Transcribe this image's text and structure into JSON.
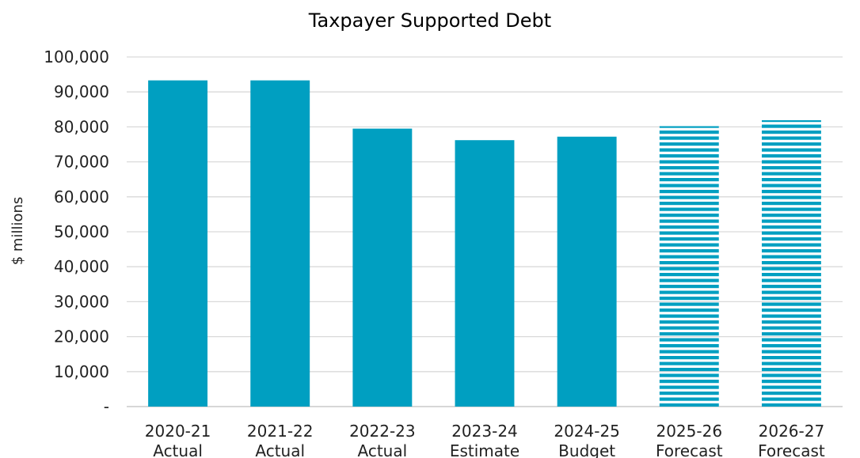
{
  "chart_data": {
    "type": "bar",
    "title": "Taxpayer Supported Debt",
    "ylabel": "$ millions",
    "xlabel": "",
    "ylim": [
      0,
      100000
    ],
    "yticks": [
      "-",
      "10,000",
      "20,000",
      "30,000",
      "40,000",
      "50,000",
      "60,000",
      "70,000",
      "80,000",
      "90,000",
      "100,000"
    ],
    "ytick_values": [
      0,
      10000,
      20000,
      30000,
      40000,
      50000,
      60000,
      70000,
      80000,
      90000,
      100000
    ],
    "categories": [
      {
        "year": "2020-21",
        "status": "Actual"
      },
      {
        "year": "2021-22",
        "status": "Actual"
      },
      {
        "year": "2022-23",
        "status": "Actual"
      },
      {
        "year": "2023-24",
        "status": "Estimate"
      },
      {
        "year": "2024-25",
        "status": "Budget"
      },
      {
        "year": "2025-26",
        "status": "Forecast"
      },
      {
        "year": "2026-27",
        "status": "Forecast"
      }
    ],
    "values": [
      93300,
      93300,
      79500,
      76200,
      77200,
      80200,
      81900
    ],
    "bar_style": [
      "solid",
      "solid",
      "solid",
      "solid",
      "solid",
      "striped",
      "striped"
    ],
    "bar_color": "#009fc1",
    "grid": true,
    "legend": "none"
  }
}
